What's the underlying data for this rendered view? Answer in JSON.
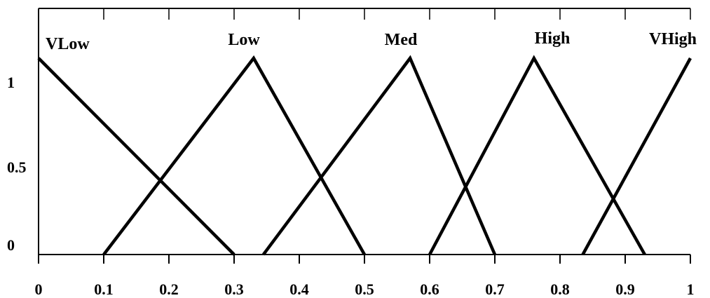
{
  "chart_data": {
    "type": "line",
    "title": "",
    "xlabel": "",
    "ylabel": "",
    "xlim": [
      0,
      1
    ],
    "ylim": [
      0,
      1
    ],
    "x_ticks": [
      "0",
      "0.1",
      "0.2",
      "0.3",
      "0.4",
      "0.5",
      "0.6",
      "0.7",
      "0.8",
      "0.9",
      "1"
    ],
    "y_ticks": [
      "0",
      "0.5",
      "1"
    ],
    "grid": false,
    "series": [
      {
        "name": "VLow",
        "x": [
          0.0,
          0.3
        ],
        "y": [
          1.0,
          0.0
        ]
      },
      {
        "name": "Low",
        "x": [
          0.1,
          0.33,
          0.5
        ],
        "y": [
          0.0,
          1.0,
          0.0
        ]
      },
      {
        "name": "Med",
        "x": [
          0.345,
          0.57,
          0.7
        ],
        "y": [
          0.0,
          1.0,
          0.0
        ]
      },
      {
        "name": "High",
        "x": [
          0.6,
          0.76,
          0.93
        ],
        "y": [
          0.0,
          1.0,
          0.0
        ]
      },
      {
        "name": "VHigh",
        "x": [
          0.835,
          1.0
        ],
        "y": [
          0.0,
          1.0
        ]
      }
    ]
  }
}
